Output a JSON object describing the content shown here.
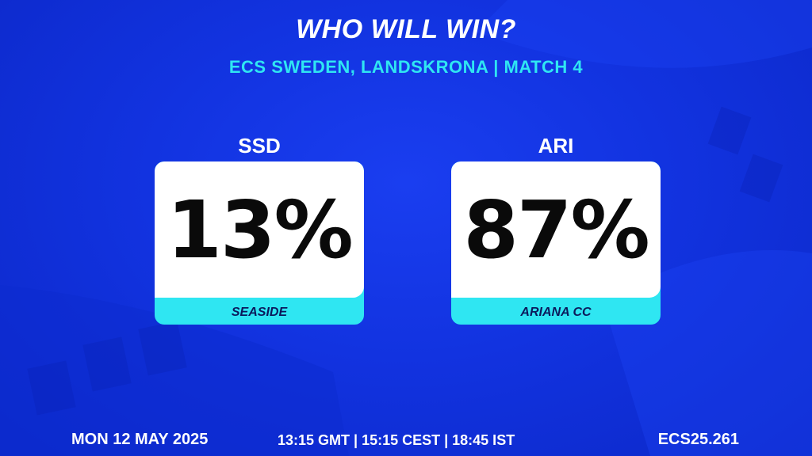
{
  "header": {
    "title": "WHO WILL WIN?",
    "subtitle": "ECS SWEDEN, LANDSKRONA | MATCH 4"
  },
  "teams": [
    {
      "code": "SSD",
      "percent": "13%",
      "name": "SEASIDE",
      "win_probability": 13
    },
    {
      "code": "ARI",
      "percent": "87%",
      "name": "ARIANA CC",
      "win_probability": 87
    }
  ],
  "footer": {
    "date": "MON 12 MAY 2025",
    "time": "13:15 GMT | 15:15 CEST | 18:45 IST",
    "code": "ECS25.261"
  },
  "colors": {
    "background": "#1233e0",
    "accent": "#2fe6f2",
    "card": "#ffffff",
    "text_dark": "#0a0a0a"
  }
}
